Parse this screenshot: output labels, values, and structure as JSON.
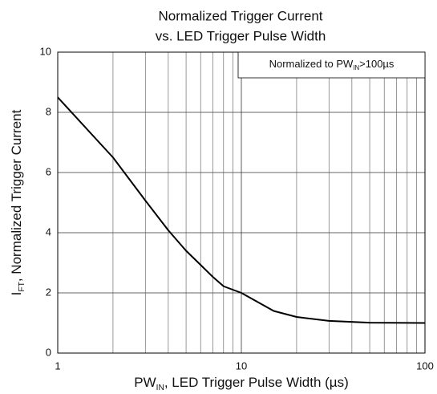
{
  "chart_data": {
    "type": "line",
    "title": [
      "Normalized Trigger Current",
      "vs. LED Trigger Pulse Width"
    ],
    "xlabel": {
      "main": "PW",
      "sub": "IN",
      "rest": ", LED Trigger Pulse Width (µs)"
    },
    "ylabel": {
      "main": "I",
      "sub": "FT",
      "rest": ", Normalized Trigger Current"
    },
    "annotation": {
      "main": "Normalized to PW",
      "sub": "IN",
      "rest": ">100µs"
    },
    "x": [
      1,
      2,
      3,
      4,
      5,
      6,
      7,
      8,
      10,
      15,
      20,
      30,
      50,
      100
    ],
    "values": [
      8.5,
      6.5,
      5.07,
      4.08,
      3.4,
      2.93,
      2.53,
      2.22,
      2.0,
      1.4,
      1.2,
      1.07,
      1.01,
      1.0
    ],
    "color": "#000000",
    "xscale": "log",
    "xlim": [
      1,
      100
    ],
    "xticks": [
      1,
      10,
      100
    ],
    "xminor": [
      2,
      3,
      4,
      5,
      6,
      7,
      8,
      9,
      20,
      30,
      40,
      50,
      60,
      70,
      80,
      90
    ],
    "ylim": [
      0,
      10
    ],
    "yticks": [
      0,
      2,
      4,
      6,
      8,
      10
    ],
    "grid": true
  }
}
